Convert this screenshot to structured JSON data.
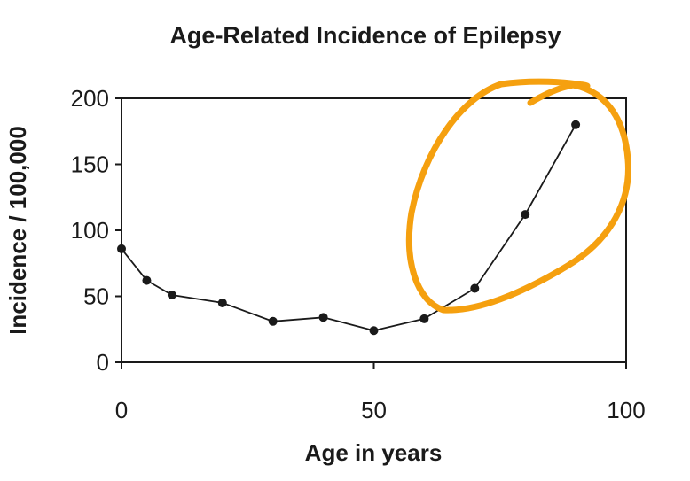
{
  "chart_data": {
    "type": "line",
    "title": "Age-Related Incidence of Epilepsy",
    "xlabel": "Age in years",
    "ylabel": "Incidence / 100,000",
    "xlim": [
      0,
      100
    ],
    "ylim": [
      0,
      200
    ],
    "xticks": [
      "0",
      "50",
      "100"
    ],
    "yticks": [
      "0",
      "50",
      "100",
      "150",
      "200"
    ],
    "grid": false,
    "series": [
      {
        "x": [
          0,
          5,
          10,
          20,
          30,
          40,
          50,
          60,
          70,
          80,
          90
        ],
        "y": [
          86,
          62,
          51,
          45,
          31,
          34,
          24,
          33,
          56,
          112,
          180
        ]
      }
    ],
    "annotation": {
      "type": "hand-drawn circle",
      "color": "#f5a00f",
      "encloses_x": [
        60,
        90
      ]
    }
  }
}
